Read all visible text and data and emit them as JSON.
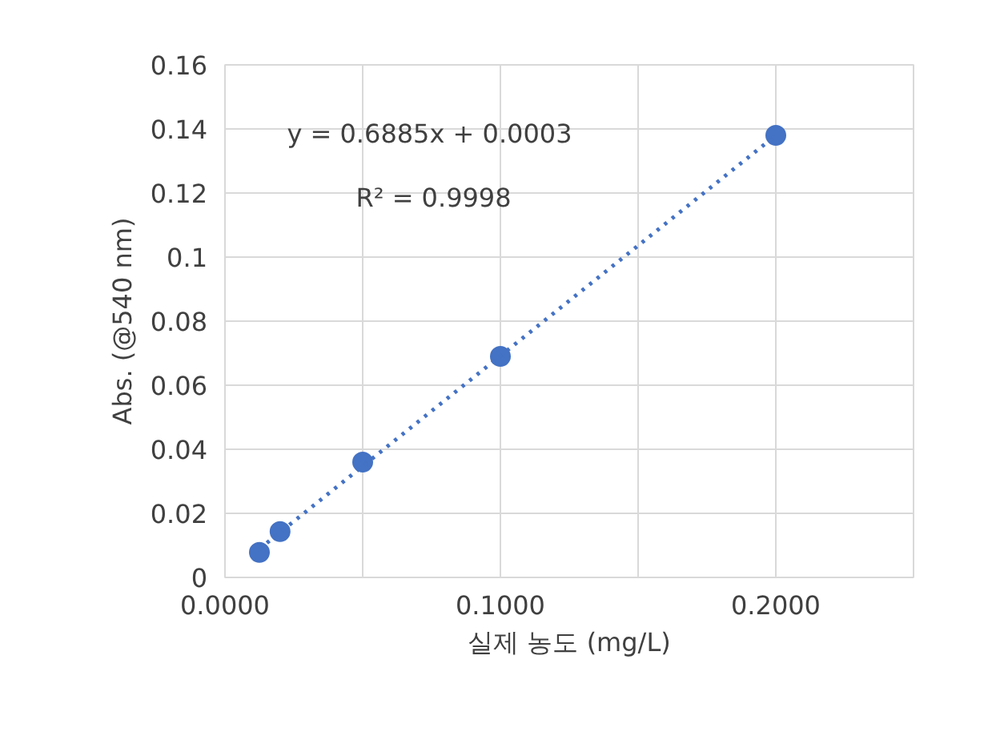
{
  "chart_data": {
    "type": "scatter",
    "xlabel": "실제 농도 (mg/L)",
    "ylabel": "Abs. (@540 nm)",
    "x": [
      0.0125,
      0.02,
      0.05,
      0.1,
      0.2
    ],
    "series": [
      {
        "color": "#4472c4",
        "values": [
          0.0078,
          0.0143,
          0.036,
          0.069,
          0.138
        ],
        "marker": "circle"
      },
      {
        "type": "line",
        "color": "#4472c4",
        "x": [
          0.0125,
          0.2
        ],
        "values": [
          0.0089,
          0.138
        ],
        "line_style": "dotted"
      }
    ],
    "xlim": [
      0,
      0.25
    ],
    "xticks": [
      {
        "value": 0,
        "label": "0.0000"
      },
      {
        "value": 0.05,
        "label": null
      },
      {
        "value": 0.1,
        "label": "0.1000"
      },
      {
        "value": 0.15,
        "label": null
      },
      {
        "value": 0.2,
        "label": "0.2000"
      }
    ],
    "ylim": [
      0,
      0.16
    ],
    "yticks": [
      0,
      0.02,
      0.04,
      0.06,
      0.08,
      0.1,
      0.12,
      0.14,
      0.16
    ],
    "annotations": [
      "y = 0.6885x + 0.0003",
      "R² = 0.9998"
    ],
    "grid": true
  }
}
